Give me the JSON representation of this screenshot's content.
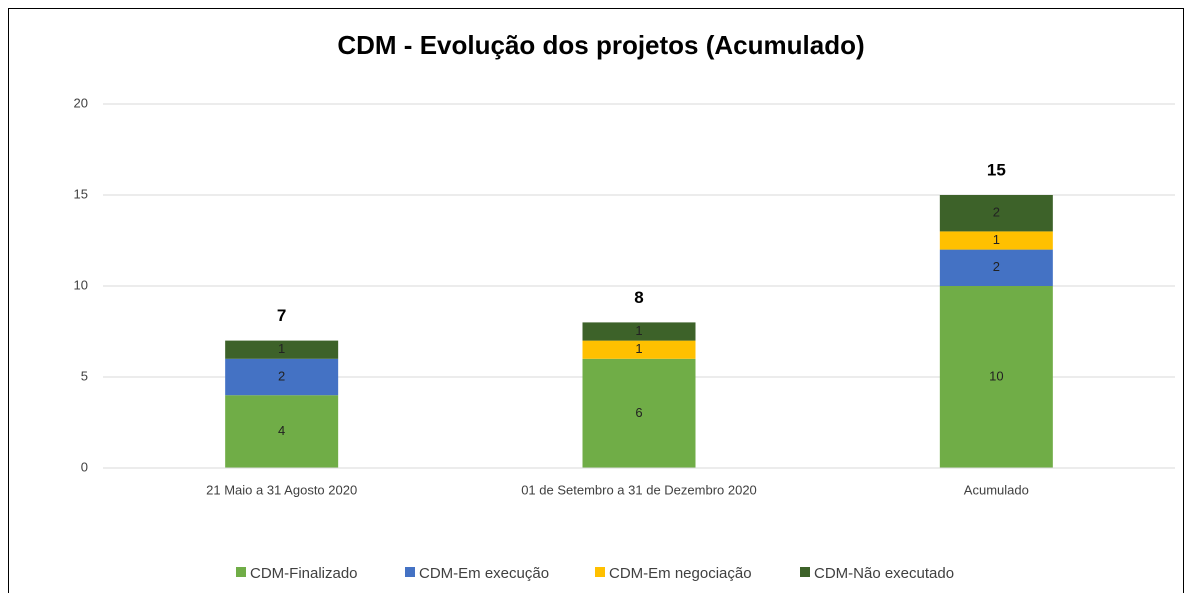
{
  "chart_data": {
    "type": "stacked_bar",
    "title": "CDM - Evolução dos projetos (Acumulado)",
    "categories": [
      "21 Maio a 31 Agosto 2020",
      "01 de Setembro a 31 de Dezembro 2020",
      "Acumulado"
    ],
    "series": [
      {
        "name": "CDM-Finalizado",
        "color": "#70ad47",
        "values": [
          4,
          6,
          10
        ]
      },
      {
        "name": "CDM-Em execução",
        "color": "#4472c4",
        "values": [
          2,
          null,
          2
        ]
      },
      {
        "name": "CDM-Em negociação",
        "color": "#ffc000",
        "values": [
          null,
          1,
          1
        ]
      },
      {
        "name": "CDM-Não executado",
        "color": "#3d6229",
        "values": [
          1,
          1,
          2
        ]
      }
    ],
    "totals": [
      7,
      8,
      15
    ],
    "ylim": [
      0,
      20
    ],
    "yticks": [
      0,
      5,
      10,
      15,
      20
    ],
    "grid": true,
    "legend": "bottom"
  }
}
